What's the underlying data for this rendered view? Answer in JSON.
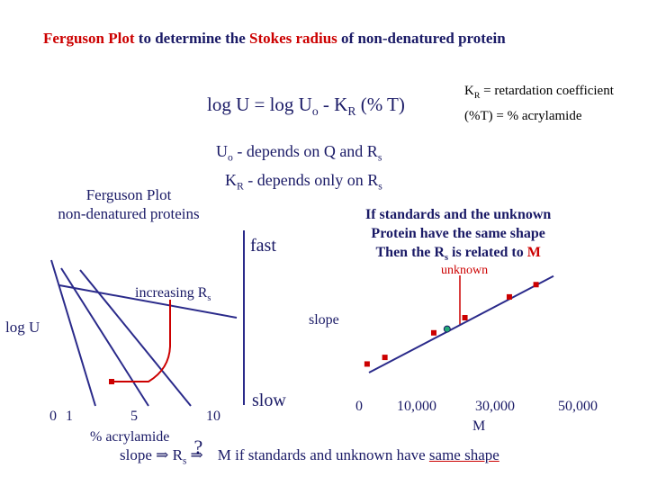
{
  "title": {
    "part1": "Ferguson Plot",
    "part2": " to determine the ",
    "part3": "Stokes radius",
    "part4": " of non-denatured protein"
  },
  "equation": {
    "lhs": "log U = log U",
    "sub_o": "o",
    "mid": " - K",
    "sub_R": "R",
    "rhs": " (% T)"
  },
  "definitions": {
    "kr_line": "= retardation coefficient",
    "kr_prefix": "K",
    "kr_sub": "R",
    "t_line": "(%T) =  % acrylamide"
  },
  "depends": {
    "uo_prefix": "U",
    "uo_sub": "o",
    "uo_text": "  -  depends on Q  and  R",
    "uo_sub2": "s",
    "kr_prefix": "K",
    "kr_sub": "R",
    "kr_text": "  -  depends only on R",
    "kr_sub2": "s"
  },
  "left_plot": {
    "heading_line1": "Ferguson Plot",
    "heading_line2": "non-denatured proteins",
    "increasing_label": "increasing R",
    "increasing_sub": "s",
    "ylabel": "log U",
    "xlabel": "% acrylamide",
    "ticks": [
      "0",
      "1",
      "5",
      "10"
    ],
    "fast_label": "fast",
    "slow_label": "slow",
    "slope_label": "slope"
  },
  "right_text": {
    "line1": "If standards and the unknown",
    "line2": "Protein have the same shape",
    "line3_a": "Then the R",
    "line3_sub": "s",
    "line3_b": " is related to ",
    "line3_m": "M",
    "unknown_label": "unknown"
  },
  "bottom": {
    "slope_text": "slope ",
    "arrow1": "⇒",
    "rs_prefix": " R",
    "rs_sub": "s",
    "question": "?",
    "arrow2": "⇒",
    "m_text": " M if standards and unknown have ",
    "same_shape": "same shape"
  },
  "chart_data": {
    "type": "scatter",
    "xlabel": "M",
    "ylabel": "",
    "x_ticks": [
      "0",
      "10,000",
      "30,000",
      "50,000"
    ],
    "xlim": [
      0,
      50000
    ],
    "standards_color": "#cc0000",
    "unknown_color": "#22aa77",
    "line_color": "#2a2a8a",
    "series": [
      {
        "points": [
          {
            "x": 2000,
            "y": 0.11
          },
          {
            "x": 6000,
            "y": 0.18
          },
          {
            "x": 17000,
            "y": 0.44
          },
          {
            "x": 24000,
            "y": 0.6
          },
          {
            "x": 34000,
            "y": 0.82
          },
          {
            "x": 40000,
            "y": 0.95
          }
        ]
      }
    ],
    "unknown_point": {
      "x": 20000,
      "y": 0.48
    }
  },
  "colors": {
    "title_red": "#cc0000",
    "title_navy": "#1a1a66",
    "line_navy": "#2a2a8a",
    "marker_red": "#cc0000"
  }
}
